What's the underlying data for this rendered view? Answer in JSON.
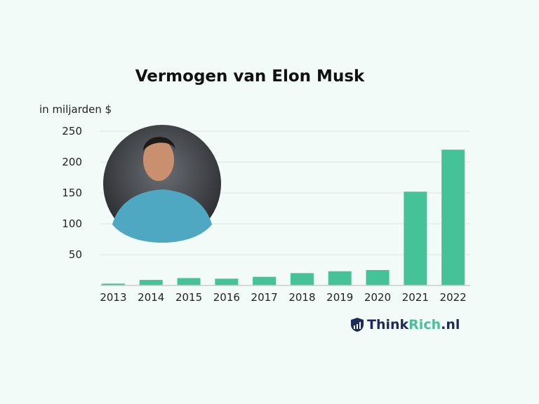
{
  "chart_data": {
    "type": "bar",
    "title": "Vermogen van Elon Musk",
    "ylabel": "in miljarden $",
    "xlabel": "",
    "categories": [
      "2013",
      "2014",
      "2015",
      "2016",
      "2017",
      "2018",
      "2019",
      "2020",
      "2021",
      "2022"
    ],
    "values": [
      3,
      9,
      12,
      11,
      14,
      20,
      23,
      25,
      152,
      220
    ],
    "ylim": [
      0,
      250
    ],
    "yticks": [
      50,
      100,
      150,
      200,
      250
    ],
    "grid": true,
    "bar_color": "#45c297"
  },
  "logo": {
    "text_dark": "Think",
    "text_green": "Rich",
    "text_suffix": ".nl"
  }
}
